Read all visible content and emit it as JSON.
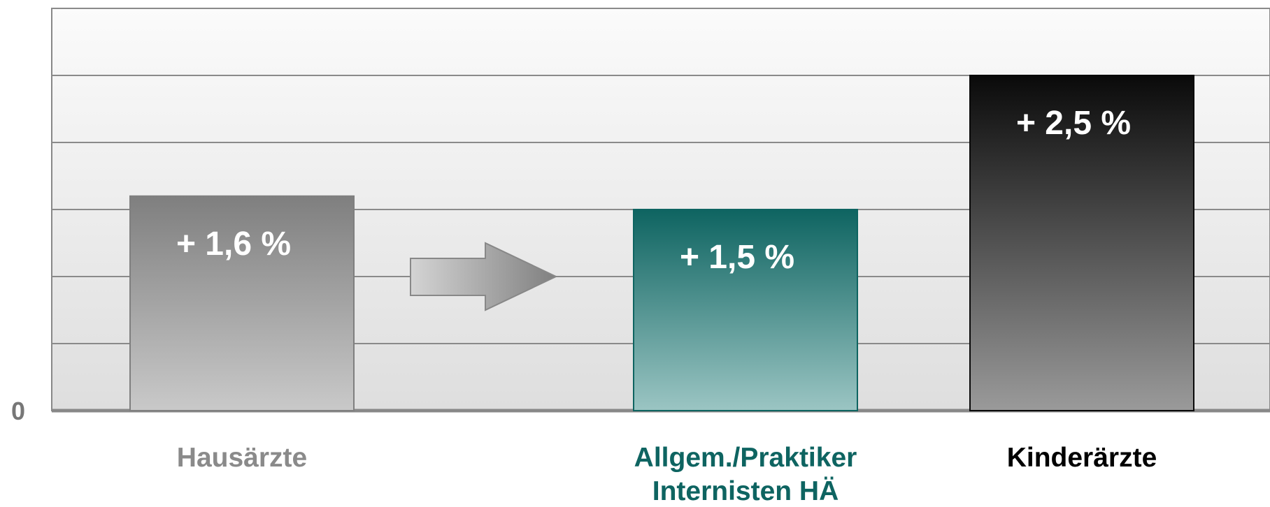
{
  "chart_data": {
    "type": "bar",
    "categories": [
      "Hausärzte",
      "Allgem./Praktiker\nInternisten HÄ",
      "Kinderärzte"
    ],
    "values": [
      1.6,
      1.5,
      2.5
    ],
    "value_labels": [
      "+ 1,6 %",
      "+ 1,5 %",
      "+ 2,5 %"
    ],
    "colors": [
      [
        "#7f7f7f",
        "#c9c9c9"
      ],
      [
        "#0e6461",
        "#9bc5c3"
      ],
      [
        "#0a0a0a",
        "#9a9a9a"
      ]
    ],
    "label_colors": [
      "#8a8a8a",
      "#0e6461",
      "#000000"
    ],
    "ylim": [
      0,
      3
    ],
    "yticks": [
      0
    ],
    "grid_lines": [
      0.5,
      1,
      1.5,
      2,
      2.5,
      3
    ],
    "grid": true
  }
}
